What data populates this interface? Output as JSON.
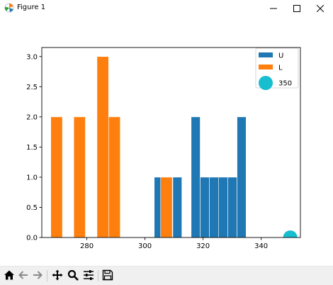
{
  "window": {
    "title": "Figure 1"
  },
  "toolbar": {
    "buttons": [
      "home-icon",
      "back-icon",
      "forward-icon",
      "pan-icon",
      "zoom-icon",
      "configure-icon",
      "save-icon"
    ]
  },
  "chart_data": {
    "type": "bar",
    "title": "",
    "xlabel": "",
    "ylabel": "",
    "xlim": [
      264.5,
      353.5
    ],
    "ylim": [
      0,
      3.15
    ],
    "xticks": [
      280,
      300,
      320,
      340
    ],
    "yticks": [
      0.0,
      0.5,
      1.0,
      1.5,
      2.0,
      2.5,
      3.0
    ],
    "ytick_labels": [
      "0.0",
      "0.5",
      "1.0",
      "1.5",
      "2.0",
      "2.5",
      "3.0"
    ],
    "grid": false,
    "legend_position": "top-right",
    "series": [
      {
        "name": "U",
        "color": "#1f77b4",
        "bins": [
          {
            "x0": 303.2,
            "x1": 306.3,
            "count": 1
          },
          {
            "x0": 309.6,
            "x1": 312.7,
            "count": 1
          },
          {
            "x0": 315.9,
            "x1": 319.0,
            "count": 2
          },
          {
            "x0": 319.0,
            "x1": 322.2,
            "count": 1
          },
          {
            "x0": 322.2,
            "x1": 325.3,
            "count": 1
          },
          {
            "x0": 325.3,
            "x1": 328.5,
            "count": 1
          },
          {
            "x0": 328.5,
            "x1": 331.7,
            "count": 1
          },
          {
            "x0": 331.7,
            "x1": 334.8,
            "count": 2
          }
        ]
      },
      {
        "name": "L",
        "color": "#ff7f0e",
        "bins": [
          {
            "x0": 267.6,
            "x1": 271.6,
            "count": 2
          },
          {
            "x0": 275.5,
            "x1": 279.5,
            "count": 2
          },
          {
            "x0": 283.5,
            "x1": 287.5,
            "count": 3
          },
          {
            "x0": 287.5,
            "x1": 291.5,
            "count": 2
          },
          {
            "x0": 305.4,
            "x1": 309.4,
            "count": 1
          }
        ]
      },
      {
        "name": "350",
        "color": "#17becf",
        "type": "scatter",
        "points": [
          {
            "x": 350,
            "y": 0
          }
        ]
      }
    ]
  }
}
